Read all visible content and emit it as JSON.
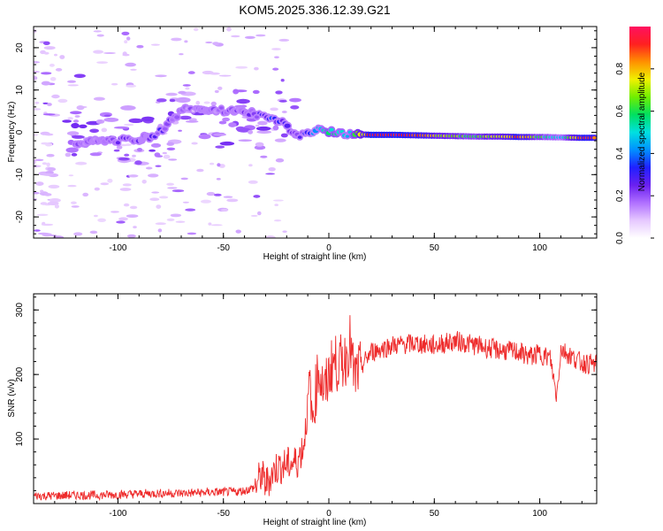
{
  "figure_title": "KOM5.2025.336.12.39.G21",
  "colors": {
    "snr_line": "#ee2b2b",
    "axis": "#000000",
    "colormap": [
      "#ffffff",
      "#e6c8ff",
      "#b070ff",
      "#6a20f0",
      "#2020ff",
      "#0090ff",
      "#00e0e0",
      "#00e060",
      "#70ee00",
      "#f0f000",
      "#ff9000",
      "#ff2020",
      "#ff1060"
    ]
  },
  "chart_data": [
    {
      "type": "heatmap",
      "title": "KOM5.2025.336.12.39.G21",
      "xlabel": "Height of straight line (km)",
      "ylabel": "Frequency (Hz)",
      "xlim": [
        -140,
        127
      ],
      "ylim": [
        -25,
        25
      ],
      "xticks": [
        -100,
        -50,
        0,
        50,
        100
      ],
      "xtick_labels": [
        "-100",
        "-50",
        "0",
        "50",
        "100"
      ],
      "yticks": [
        -20,
        -10,
        0,
        10,
        20
      ],
      "ytick_labels": [
        "-20",
        "-10",
        "0",
        "10",
        "20"
      ],
      "grid": false,
      "colorbar": {
        "label": "Normalized spectral amplitude",
        "range": [
          0,
          1
        ],
        "ticks": [
          0.0,
          0.2,
          0.4,
          0.6,
          0.8
        ],
        "tick_labels": [
          "0.0",
          "0.2",
          "0.4",
          "0.6",
          "0.8"
        ]
      },
      "ridge": [
        {
          "x": -120,
          "f": -2.5,
          "amp": 0.15
        },
        {
          "x": -105,
          "f": -2.0,
          "amp": 0.18
        },
        {
          "x": -95,
          "f": -1.8,
          "amp": 0.22
        },
        {
          "x": -85,
          "f": -1.2,
          "amp": 0.2
        },
        {
          "x": -80,
          "f": 0.2,
          "amp": 0.25
        },
        {
          "x": -72,
          "f": 4.0,
          "amp": 0.2
        },
        {
          "x": -68,
          "f": 5.5,
          "amp": 0.15
        },
        {
          "x": -40,
          "f": 5.0,
          "amp": 0.18
        },
        {
          "x": -33,
          "f": 4.0,
          "amp": 0.25
        },
        {
          "x": -27,
          "f": 3.5,
          "amp": 0.32
        },
        {
          "x": -22,
          "f": 2.5,
          "amp": 0.28
        },
        {
          "x": -15,
          "f": -1.0,
          "amp": 0.25
        },
        {
          "x": -10,
          "f": 0.0,
          "amp": 0.3
        },
        {
          "x": -5,
          "f": 0.5,
          "amp": 0.45
        },
        {
          "x": 0,
          "f": 0.3,
          "amp": 0.55
        },
        {
          "x": 5,
          "f": 0.0,
          "amp": 0.48
        },
        {
          "x": 10,
          "f": -0.5,
          "amp": 0.5
        },
        {
          "x": 15,
          "f": -0.5,
          "amp": 0.7
        },
        {
          "x": 20,
          "f": -0.6,
          "amp": 0.95
        },
        {
          "x": 30,
          "f": -0.6,
          "amp": 0.95
        },
        {
          "x": 40,
          "f": -0.7,
          "amp": 0.9
        },
        {
          "x": 50,
          "f": -0.8,
          "amp": 0.75
        },
        {
          "x": 60,
          "f": -0.9,
          "amp": 0.65
        },
        {
          "x": 70,
          "f": -1.0,
          "amp": 0.6
        },
        {
          "x": 80,
          "f": -1.0,
          "amp": 0.75
        },
        {
          "x": 90,
          "f": -1.1,
          "amp": 0.88
        },
        {
          "x": 100,
          "f": -1.1,
          "amp": 0.6
        },
        {
          "x": 110,
          "f": -1.2,
          "amp": 0.45
        },
        {
          "x": 120,
          "f": -1.3,
          "amp": 0.9
        },
        {
          "x": 127,
          "f": -1.3,
          "amp": 0.88
        }
      ]
    },
    {
      "type": "line",
      "xlabel": "Height of straight line (km)",
      "ylabel": "SNR (v/v)",
      "xlim": [
        -140,
        127
      ],
      "ylim": [
        0,
        325
      ],
      "xticks": [
        -100,
        -50,
        0,
        50,
        100
      ],
      "xtick_labels": [
        "-100",
        "-50",
        "0",
        "50",
        "100"
      ],
      "yticks": [
        100,
        200,
        300
      ],
      "ytick_labels": [
        "100",
        "200",
        "300"
      ],
      "grid": false,
      "series": [
        {
          "name": "SNR",
          "x": [
            -140,
            -130,
            -120,
            -110,
            -100,
            -90,
            -80,
            -70,
            -60,
            -50,
            -45,
            -40,
            -35,
            -32,
            -30,
            -25,
            -20,
            -15,
            -12,
            -10,
            -9,
            -8,
            -5,
            -2,
            0,
            2,
            5,
            8,
            10,
            12,
            15,
            20,
            25,
            30,
            40,
            50,
            60,
            70,
            80,
            90,
            95,
            100,
            105,
            108,
            110,
            115,
            120,
            127
          ],
          "values": [
            12,
            12,
            13,
            13,
            14,
            15,
            16,
            16,
            17,
            18,
            18,
            20,
            25,
            45,
            30,
            55,
            60,
            65,
            90,
            150,
            200,
            120,
            210,
            170,
            200,
            220,
            215,
            225,
            250,
            195,
            210,
            235,
            240,
            245,
            248,
            245,
            252,
            245,
            238,
            235,
            228,
            232,
            225,
            165,
            240,
            228,
            218,
            215
          ]
        }
      ]
    }
  ]
}
